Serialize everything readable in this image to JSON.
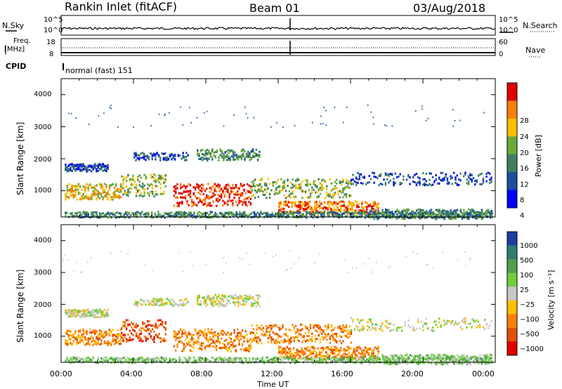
{
  "title": {
    "station": "Rankin Inlet (fitACF)",
    "beam": "Beam 01",
    "date": "03/Aug/2018"
  },
  "top_panels": {
    "nsky_label": "N.Sky",
    "nsearch_label": "N.Search",
    "noise_ticks_left": [
      "10^5",
      "10^0"
    ],
    "noise_ticks_right": [
      "10^5",
      "10^0"
    ],
    "freq_label": "Freq.",
    "freq_unit": "[MHz]",
    "freq_ticks": [
      "18",
      "8"
    ],
    "nave_label": "Nave",
    "nave_ticks": [
      "60",
      "0"
    ],
    "cpid_label": "CPID",
    "cpid_value": "normal (fast) 151"
  },
  "chart_data": [
    {
      "type": "heatmap",
      "name": "power",
      "ylabel": "Slant Range [km]",
      "yticks": [
        "4000",
        "3000",
        "2000",
        "1000"
      ],
      "ylim": [
        180,
        4500
      ],
      "xlim": [
        0,
        24
      ],
      "colorbar": {
        "label": "Power [dB]",
        "ticks": [
          "28",
          "24",
          "20",
          "16",
          "12",
          "8",
          "4"
        ],
        "range": [
          0,
          30
        ],
        "colors": [
          "#0000ff",
          "#1a4fa0",
          "#3f7f5f",
          "#6aaa3a",
          "#ffc000",
          "#ff7f00",
          "#e00000"
        ]
      }
    },
    {
      "type": "heatmap",
      "name": "velocity",
      "ylabel": "Slant Range [km]",
      "yticks": [
        "4000",
        "3000",
        "2000",
        "1000"
      ],
      "ylim": [
        180,
        4500
      ],
      "xlim": [
        0,
        24
      ],
      "xlabel": "Time UT",
      "xticks": [
        "00:00",
        "04:00",
        "08:00",
        "12:00",
        "16:00",
        "20:00",
        "00:00"
      ],
      "colorbar": {
        "label": "Velocity [m s⁻¹]",
        "ticks": [
          "1000",
          "500",
          "100",
          "25",
          "−25",
          "−100",
          "−500",
          "−1000"
        ],
        "colors": [
          "#1f3fa0",
          "#2f7f6f",
          "#4fa04f",
          "#6fcf3f",
          "#c8c8c8",
          "#ffbf00",
          "#ff7f00",
          "#e05000",
          "#e00000"
        ]
      }
    }
  ]
}
